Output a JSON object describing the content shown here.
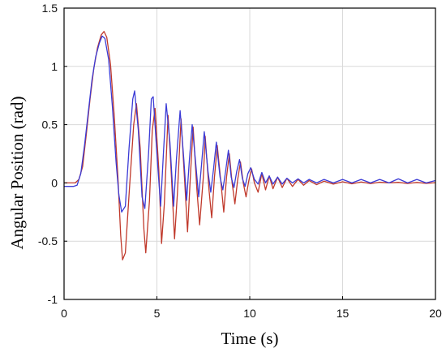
{
  "chart_data": {
    "type": "line",
    "title": "",
    "xlabel": "Time (s)",
    "ylabel": "Angular Position (rad)",
    "xlim": [
      0,
      20
    ],
    "ylim": [
      -1,
      1.5
    ],
    "x_ticks": [
      0,
      5,
      10,
      15,
      20
    ],
    "x_tick_labels": [
      "0",
      "5",
      "10",
      "15",
      "20"
    ],
    "y_ticks": [
      -1,
      -0.5,
      0,
      0.5,
      1,
      1.5
    ],
    "y_tick_labels": [
      "-1",
      "-0.5",
      "0",
      "0.5",
      "1",
      "1.5"
    ],
    "grid": true,
    "legend": "none",
    "series": [
      {
        "color": "#c0392b",
        "points": [
          [
            0,
            0
          ],
          [
            0.6,
            0
          ],
          [
            0.8,
            0.03
          ],
          [
            1.0,
            0.14
          ],
          [
            1.2,
            0.42
          ],
          [
            1.4,
            0.72
          ],
          [
            1.6,
            0.98
          ],
          [
            1.8,
            1.16
          ],
          [
            2.0,
            1.27
          ],
          [
            2.15,
            1.3
          ],
          [
            2.3,
            1.25
          ],
          [
            2.5,
            1.02
          ],
          [
            2.7,
            0.58
          ],
          [
            2.9,
            0.05
          ],
          [
            3.05,
            -0.45
          ],
          [
            3.15,
            -0.66
          ],
          [
            3.3,
            -0.6
          ],
          [
            3.5,
            -0.1
          ],
          [
            3.75,
            0.5
          ],
          [
            3.9,
            0.68
          ],
          [
            4.1,
            0.3
          ],
          [
            4.3,
            -0.4
          ],
          [
            4.4,
            -0.6
          ],
          [
            4.6,
            -0.15
          ],
          [
            4.75,
            0.45
          ],
          [
            4.9,
            0.64
          ],
          [
            5.1,
            0.12
          ],
          [
            5.25,
            -0.52
          ],
          [
            5.4,
            -0.18
          ],
          [
            5.6,
            0.58
          ],
          [
            5.75,
            0.15
          ],
          [
            5.95,
            -0.48
          ],
          [
            6.1,
            -0.1
          ],
          [
            6.3,
            0.55
          ],
          [
            6.5,
            0.0
          ],
          [
            6.65,
            -0.42
          ],
          [
            6.8,
            0.05
          ],
          [
            6.95,
            0.48
          ],
          [
            7.15,
            -0.05
          ],
          [
            7.3,
            -0.36
          ],
          [
            7.5,
            0.05
          ],
          [
            7.6,
            0.4
          ],
          [
            7.8,
            -0.05
          ],
          [
            7.95,
            -0.3
          ],
          [
            8.1,
            0.05
          ],
          [
            8.25,
            0.32
          ],
          [
            8.45,
            0.0
          ],
          [
            8.6,
            -0.25
          ],
          [
            8.75,
            0.05
          ],
          [
            8.9,
            0.25
          ],
          [
            9.05,
            0.0
          ],
          [
            9.2,
            -0.18
          ],
          [
            9.35,
            0.03
          ],
          [
            9.5,
            0.18
          ],
          [
            9.65,
            0.0
          ],
          [
            9.8,
            -0.12
          ],
          [
            9.95,
            0.02
          ],
          [
            10.1,
            0.12
          ],
          [
            10.25,
            0.0
          ],
          [
            10.45,
            -0.08
          ],
          [
            10.65,
            0.08
          ],
          [
            10.85,
            -0.06
          ],
          [
            11.05,
            0.06
          ],
          [
            11.25,
            -0.05
          ],
          [
            11.5,
            0.05
          ],
          [
            11.75,
            -0.04
          ],
          [
            12.0,
            0.04
          ],
          [
            12.3,
            -0.03
          ],
          [
            12.6,
            0.03
          ],
          [
            12.9,
            -0.02
          ],
          [
            13.2,
            0.02
          ],
          [
            13.6,
            -0.015
          ],
          [
            14.0,
            0.015
          ],
          [
            14.5,
            -0.01
          ],
          [
            15.0,
            0.01
          ],
          [
            15.5,
            -0.008
          ],
          [
            16.0,
            0.008
          ],
          [
            16.5,
            -0.006
          ],
          [
            17.0,
            0.006
          ],
          [
            17.5,
            0.0
          ],
          [
            18.0,
            0.005
          ],
          [
            18.5,
            -0.005
          ],
          [
            19.0,
            0.004
          ],
          [
            19.5,
            -0.004
          ],
          [
            20.0,
            0.002
          ]
        ]
      },
      {
        "color": "#3b3bd6",
        "points": [
          [
            0,
            -0.03
          ],
          [
            0.5,
            -0.03
          ],
          [
            0.7,
            -0.02
          ],
          [
            0.9,
            0.08
          ],
          [
            1.1,
            0.32
          ],
          [
            1.3,
            0.6
          ],
          [
            1.5,
            0.88
          ],
          [
            1.7,
            1.08
          ],
          [
            1.9,
            1.2
          ],
          [
            2.05,
            1.26
          ],
          [
            2.2,
            1.24
          ],
          [
            2.4,
            1.06
          ],
          [
            2.6,
            0.66
          ],
          [
            2.8,
            0.18
          ],
          [
            2.95,
            -0.1
          ],
          [
            3.1,
            -0.25
          ],
          [
            3.3,
            -0.2
          ],
          [
            3.5,
            0.3
          ],
          [
            3.7,
            0.72
          ],
          [
            3.8,
            0.79
          ],
          [
            4.0,
            0.45
          ],
          [
            4.2,
            -0.12
          ],
          [
            4.35,
            -0.22
          ],
          [
            4.55,
            0.25
          ],
          [
            4.7,
            0.72
          ],
          [
            4.8,
            0.74
          ],
          [
            5.0,
            0.25
          ],
          [
            5.2,
            -0.2
          ],
          [
            5.35,
            0.25
          ],
          [
            5.5,
            0.68
          ],
          [
            5.7,
            0.35
          ],
          [
            5.9,
            -0.2
          ],
          [
            6.05,
            0.2
          ],
          [
            6.25,
            0.62
          ],
          [
            6.45,
            0.2
          ],
          [
            6.6,
            -0.15
          ],
          [
            6.75,
            0.2
          ],
          [
            6.9,
            0.5
          ],
          [
            7.1,
            0.15
          ],
          [
            7.25,
            -0.12
          ],
          [
            7.4,
            0.15
          ],
          [
            7.55,
            0.44
          ],
          [
            7.75,
            0.1
          ],
          [
            7.9,
            -0.08
          ],
          [
            8.05,
            0.12
          ],
          [
            8.2,
            0.35
          ],
          [
            8.4,
            0.05
          ],
          [
            8.55,
            -0.06
          ],
          [
            8.7,
            0.1
          ],
          [
            8.85,
            0.28
          ],
          [
            9.0,
            0.05
          ],
          [
            9.15,
            -0.04
          ],
          [
            9.3,
            0.1
          ],
          [
            9.45,
            0.2
          ],
          [
            9.6,
            0.04
          ],
          [
            9.75,
            -0.03
          ],
          [
            9.9,
            0.08
          ],
          [
            10.05,
            0.13
          ],
          [
            10.25,
            0.03
          ],
          [
            10.45,
            -0.01
          ],
          [
            10.65,
            0.09
          ],
          [
            10.85,
            0.0
          ],
          [
            11.05,
            0.06
          ],
          [
            11.25,
            -0.01
          ],
          [
            11.5,
            0.05
          ],
          [
            11.75,
            -0.01
          ],
          [
            12.0,
            0.04
          ],
          [
            12.3,
            0.0
          ],
          [
            12.6,
            0.035
          ],
          [
            12.9,
            0.0
          ],
          [
            13.2,
            0.03
          ],
          [
            13.6,
            0.0
          ],
          [
            14.0,
            0.03
          ],
          [
            14.5,
            0.0
          ],
          [
            15.0,
            0.03
          ],
          [
            15.5,
            0.0
          ],
          [
            16.0,
            0.03
          ],
          [
            16.5,
            0.0
          ],
          [
            17.0,
            0.03
          ],
          [
            17.5,
            0.0
          ],
          [
            18.0,
            0.035
          ],
          [
            18.5,
            0.0
          ],
          [
            19.0,
            0.03
          ],
          [
            19.5,
            0.0
          ],
          [
            20.0,
            0.02
          ]
        ]
      }
    ]
  }
}
